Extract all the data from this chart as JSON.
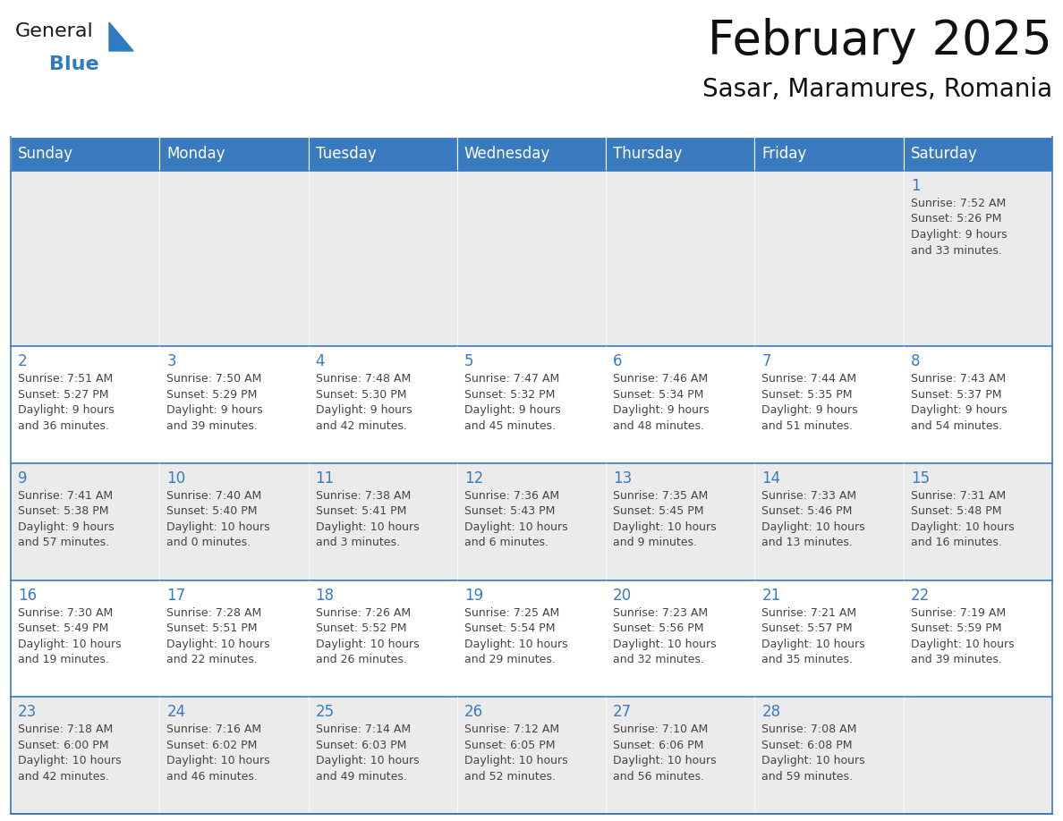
{
  "title": "February 2025",
  "subtitle": "Sasar, Maramures, Romania",
  "header_color": "#3a7abf",
  "header_text_color": "#ffffff",
  "row_colors": [
    "#ebebeb",
    "#ffffff",
    "#ebebeb",
    "#ffffff",
    "#ebebeb"
  ],
  "day_number_color": "#3a7abf",
  "text_color": "#444444",
  "border_color": "#3a7abf",
  "days_of_week": [
    "Sunday",
    "Monday",
    "Tuesday",
    "Wednesday",
    "Thursday",
    "Friday",
    "Saturday"
  ],
  "weeks": [
    [
      {
        "day": "",
        "info": ""
      },
      {
        "day": "",
        "info": ""
      },
      {
        "day": "",
        "info": ""
      },
      {
        "day": "",
        "info": ""
      },
      {
        "day": "",
        "info": ""
      },
      {
        "day": "",
        "info": ""
      },
      {
        "day": "1",
        "info": "Sunrise: 7:52 AM\nSunset: 5:26 PM\nDaylight: 9 hours\nand 33 minutes."
      }
    ],
    [
      {
        "day": "2",
        "info": "Sunrise: 7:51 AM\nSunset: 5:27 PM\nDaylight: 9 hours\nand 36 minutes."
      },
      {
        "day": "3",
        "info": "Sunrise: 7:50 AM\nSunset: 5:29 PM\nDaylight: 9 hours\nand 39 minutes."
      },
      {
        "day": "4",
        "info": "Sunrise: 7:48 AM\nSunset: 5:30 PM\nDaylight: 9 hours\nand 42 minutes."
      },
      {
        "day": "5",
        "info": "Sunrise: 7:47 AM\nSunset: 5:32 PM\nDaylight: 9 hours\nand 45 minutes."
      },
      {
        "day": "6",
        "info": "Sunrise: 7:46 AM\nSunset: 5:34 PM\nDaylight: 9 hours\nand 48 minutes."
      },
      {
        "day": "7",
        "info": "Sunrise: 7:44 AM\nSunset: 5:35 PM\nDaylight: 9 hours\nand 51 minutes."
      },
      {
        "day": "8",
        "info": "Sunrise: 7:43 AM\nSunset: 5:37 PM\nDaylight: 9 hours\nand 54 minutes."
      }
    ],
    [
      {
        "day": "9",
        "info": "Sunrise: 7:41 AM\nSunset: 5:38 PM\nDaylight: 9 hours\nand 57 minutes."
      },
      {
        "day": "10",
        "info": "Sunrise: 7:40 AM\nSunset: 5:40 PM\nDaylight: 10 hours\nand 0 minutes."
      },
      {
        "day": "11",
        "info": "Sunrise: 7:38 AM\nSunset: 5:41 PM\nDaylight: 10 hours\nand 3 minutes."
      },
      {
        "day": "12",
        "info": "Sunrise: 7:36 AM\nSunset: 5:43 PM\nDaylight: 10 hours\nand 6 minutes."
      },
      {
        "day": "13",
        "info": "Sunrise: 7:35 AM\nSunset: 5:45 PM\nDaylight: 10 hours\nand 9 minutes."
      },
      {
        "day": "14",
        "info": "Sunrise: 7:33 AM\nSunset: 5:46 PM\nDaylight: 10 hours\nand 13 minutes."
      },
      {
        "day": "15",
        "info": "Sunrise: 7:31 AM\nSunset: 5:48 PM\nDaylight: 10 hours\nand 16 minutes."
      }
    ],
    [
      {
        "day": "16",
        "info": "Sunrise: 7:30 AM\nSunset: 5:49 PM\nDaylight: 10 hours\nand 19 minutes."
      },
      {
        "day": "17",
        "info": "Sunrise: 7:28 AM\nSunset: 5:51 PM\nDaylight: 10 hours\nand 22 minutes."
      },
      {
        "day": "18",
        "info": "Sunrise: 7:26 AM\nSunset: 5:52 PM\nDaylight: 10 hours\nand 26 minutes."
      },
      {
        "day": "19",
        "info": "Sunrise: 7:25 AM\nSunset: 5:54 PM\nDaylight: 10 hours\nand 29 minutes."
      },
      {
        "day": "20",
        "info": "Sunrise: 7:23 AM\nSunset: 5:56 PM\nDaylight: 10 hours\nand 32 minutes."
      },
      {
        "day": "21",
        "info": "Sunrise: 7:21 AM\nSunset: 5:57 PM\nDaylight: 10 hours\nand 35 minutes."
      },
      {
        "day": "22",
        "info": "Sunrise: 7:19 AM\nSunset: 5:59 PM\nDaylight: 10 hours\nand 39 minutes."
      }
    ],
    [
      {
        "day": "23",
        "info": "Sunrise: 7:18 AM\nSunset: 6:00 PM\nDaylight: 10 hours\nand 42 minutes."
      },
      {
        "day": "24",
        "info": "Sunrise: 7:16 AM\nSunset: 6:02 PM\nDaylight: 10 hours\nand 46 minutes."
      },
      {
        "day": "25",
        "info": "Sunrise: 7:14 AM\nSunset: 6:03 PM\nDaylight: 10 hours\nand 49 minutes."
      },
      {
        "day": "26",
        "info": "Sunrise: 7:12 AM\nSunset: 6:05 PM\nDaylight: 10 hours\nand 52 minutes."
      },
      {
        "day": "27",
        "info": "Sunrise: 7:10 AM\nSunset: 6:06 PM\nDaylight: 10 hours\nand 56 minutes."
      },
      {
        "day": "28",
        "info": "Sunrise: 7:08 AM\nSunset: 6:08 PM\nDaylight: 10 hours\nand 59 minutes."
      },
      {
        "day": "",
        "info": ""
      }
    ]
  ],
  "logo_text_general": "General",
  "logo_text_blue": "Blue",
  "logo_color_general": "#1a1a1a",
  "logo_color_blue": "#2e7bbf",
  "logo_triangle_color": "#2e7bbf",
  "title_fontsize": 38,
  "subtitle_fontsize": 20,
  "header_fontsize": 12,
  "day_num_fontsize": 12,
  "info_fontsize": 9
}
